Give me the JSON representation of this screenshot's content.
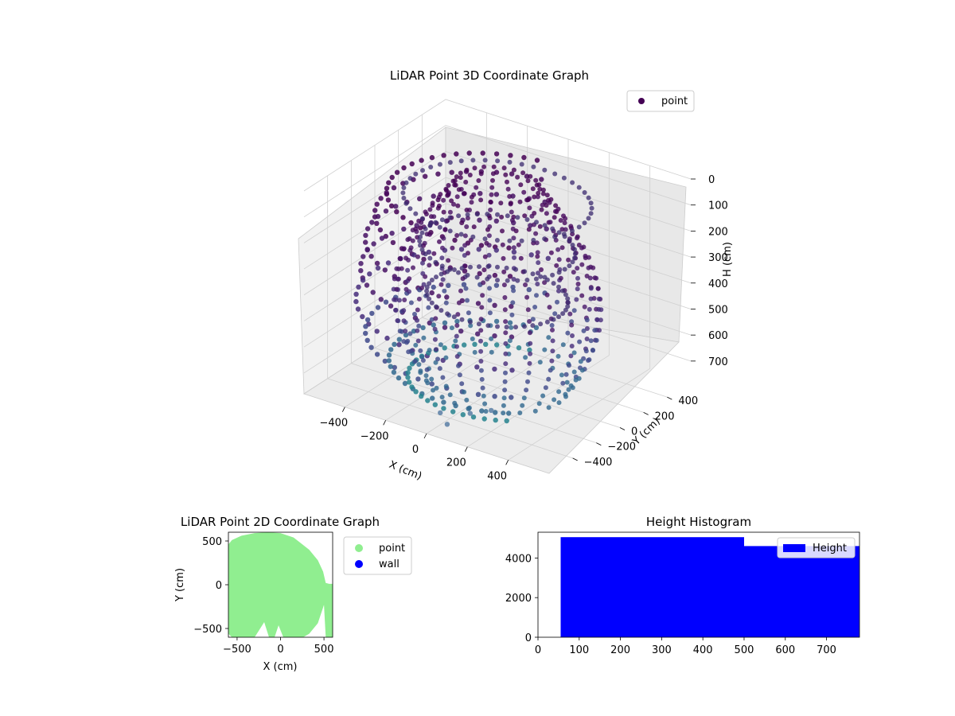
{
  "chart_data": [
    {
      "type": "scatter",
      "projection": "3d",
      "title": "LiDAR Point 3D Coordinate Graph",
      "xlabel": "X (cm)",
      "ylabel": "Y (cm)",
      "zlabel": "H (cm)",
      "xlim": [
        -600,
        600
      ],
      "ylim": [
        -600,
        600
      ],
      "zlim": [
        780,
        0
      ],
      "z_inverted": true,
      "x_ticks": [
        -400,
        -200,
        0,
        200,
        400
      ],
      "y_ticks": [
        -400,
        -200,
        0,
        200,
        400
      ],
      "z_ticks": [
        0,
        100,
        200,
        300,
        400,
        500,
        600,
        700
      ],
      "legend": [
        "point"
      ],
      "legend_position": "upper-right",
      "colormap": "viridis",
      "grid": true,
      "series": [
        {
          "name": "point",
          "color": "#440154",
          "ellipses": [
            {
              "cx": 0,
              "cy": 0,
              "z": 60,
              "r": 400
            },
            {
              "cx": 0,
              "cy": 0,
              "z": 240,
              "r": 330
            },
            {
              "cx": 0,
              "cy": 0,
              "z": 430,
              "r": 300
            }
          ],
          "ring_spread": [
            {
              "z": 60,
              "r": 470
            },
            {
              "z": 150,
              "r": 520
            },
            {
              "z": 250,
              "r": 560
            },
            {
              "z": 360,
              "r": 580
            },
            {
              "z": 480,
              "r": 600
            },
            {
              "z": 600,
              "r": 560
            },
            {
              "z": 700,
              "r": 460
            },
            {
              "z": 760,
              "r": 380
            }
          ],
          "outliers": [
            {
              "x": -60,
              "y": -380,
              "z": 780
            },
            {
              "x": 20,
              "y": -460,
              "z": 780
            },
            {
              "x": 40,
              "y": -300,
              "z": 780
            },
            {
              "x": 120,
              "y": -260,
              "z": 760
            }
          ]
        }
      ]
    },
    {
      "type": "scatter",
      "title": "LiDAR Point 2D Coordinate Graph",
      "xlabel": "X (cm)",
      "ylabel": "Y (cm)",
      "xlim": [
        -600,
        600
      ],
      "ylim": [
        -600,
        600
      ],
      "x_ticks": [
        -500,
        0,
        500
      ],
      "y_ticks": [
        -500,
        0,
        500
      ],
      "legend": [
        "point",
        "wall"
      ],
      "legend_position": "outside-upper-right",
      "series": [
        {
          "name": "point",
          "color": "#90ee90",
          "region_outline": [
            [
              -600,
              460
            ],
            [
              -560,
              510
            ],
            [
              -450,
              560
            ],
            [
              -300,
              590
            ],
            [
              -150,
              600
            ],
            [
              0,
              590
            ],
            [
              150,
              540
            ],
            [
              330,
              400
            ],
            [
              430,
              280
            ],
            [
              490,
              150
            ],
            [
              520,
              20
            ],
            [
              560,
              10
            ],
            [
              600,
              10
            ],
            [
              600,
              -600
            ],
            [
              520,
              -600
            ],
            [
              500,
              -230
            ],
            [
              430,
              -440
            ],
            [
              330,
              -560
            ],
            [
              260,
              -600
            ],
            [
              -210,
              -600
            ],
            [
              -240,
              -530
            ],
            [
              -300,
              -600
            ],
            [
              -560,
              -600
            ],
            [
              -600,
              -560
            ]
          ]
        },
        {
          "name": "wall",
          "color": "#0000ff",
          "points": []
        }
      ]
    },
    {
      "type": "bar",
      "title": "Height Histogram",
      "xlim": [
        0,
        780
      ],
      "ylim": [
        0,
        5300
      ],
      "x_ticks": [
        0,
        100,
        200,
        300,
        400,
        500,
        600,
        700
      ],
      "y_ticks": [
        0,
        2000,
        4000
      ],
      "legend": [
        "Height"
      ],
      "legend_position": "upper-right",
      "series": [
        {
          "name": "Height",
          "color": "#0000ff",
          "bins": [
            {
              "from": 55,
              "to": 500,
              "count": 5050
            },
            {
              "from": 500,
              "to": 780,
              "count": 4600
            }
          ]
        }
      ]
    }
  ]
}
